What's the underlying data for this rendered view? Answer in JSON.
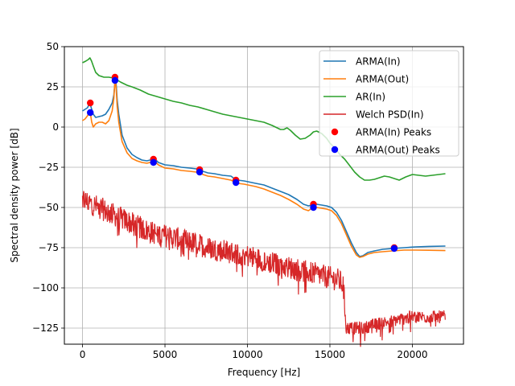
{
  "chart_data": {
    "type": "line",
    "title": "",
    "xlabel": "Frequency [Hz]",
    "ylabel": "Spectral density power [dB]",
    "xlim": [
      -1100,
      23100
    ],
    "ylim": [
      -135,
      50
    ],
    "xticks": [
      0,
      5000,
      10000,
      15000,
      20000
    ],
    "yticks": [
      50,
      25,
      0,
      -25,
      -50,
      -75,
      -100,
      -125
    ],
    "xtick_labels": [
      "0",
      "5000",
      "10000",
      "15000",
      "20000"
    ],
    "ytick_labels": [
      "50",
      "25",
      "0",
      "−25",
      "−50",
      "−75",
      "−100",
      "−125"
    ],
    "grid": true,
    "legend_position": "top-right",
    "series": [
      {
        "name": "ARMA(In)",
        "kind": "line",
        "color": "#1f77b4",
        "x": [
          0,
          150,
          300,
          400,
          460,
          500,
          560,
          650,
          800,
          1000,
          1200,
          1400,
          1600,
          1800,
          1900,
          1950,
          1980,
          2000,
          2050,
          2100,
          2200,
          2400,
          2700,
          3000,
          3300,
          3600,
          3900,
          4100,
          4200,
          4300,
          4400,
          4600,
          5000,
          5500,
          6000,
          6500,
          6900,
          7100,
          7300,
          7600,
          8000,
          8500,
          9000,
          9200,
          9400,
          9800,
          10500,
          11000,
          11500,
          12000,
          12500,
          13000,
          13400,
          13700,
          13900,
          14000,
          14200,
          14500,
          14800,
          15100,
          15400,
          15700,
          16000,
          16300,
          16600,
          16800,
          17000,
          17300,
          17700,
          18200,
          18800,
          19500,
          20200,
          21000,
          22000
        ],
        "y": [
          10,
          11,
          12,
          14,
          15,
          13,
          11,
          8,
          6,
          6.5,
          7,
          8,
          11,
          15,
          20,
          26,
          30,
          31,
          25,
          17,
          8,
          -5,
          -13,
          -17,
          -19,
          -20.5,
          -21,
          -20.5,
          -20,
          -19.5,
          -20,
          -22,
          -23.5,
          -24,
          -25,
          -25.5,
          -26,
          -26,
          -27.5,
          -28.5,
          -29,
          -30,
          -30.5,
          -32,
          -33,
          -33.5,
          -35,
          -36,
          -38,
          -40,
          -42,
          -45,
          -48,
          -49,
          -48.5,
          -48,
          -48,
          -48.5,
          -49,
          -50,
          -53,
          -58,
          -65,
          -72,
          -78,
          -80.5,
          -80,
          -78,
          -77,
          -76,
          -75.5,
          -75,
          -74.5,
          -74.2,
          -74
        ]
      },
      {
        "name": "ARMA(Out)",
        "kind": "line",
        "color": "#ff7f0e",
        "x": [
          0,
          150,
          300,
          400,
          460,
          500,
          560,
          650,
          800,
          1000,
          1200,
          1400,
          1600,
          1800,
          1900,
          1950,
          1980,
          2000,
          2050,
          2100,
          2200,
          2400,
          2700,
          3000,
          3300,
          3600,
          3900,
          4100,
          4200,
          4300,
          4400,
          4600,
          5000,
          5500,
          6000,
          6500,
          6900,
          7100,
          7300,
          7600,
          8000,
          8500,
          9000,
          9200,
          9400,
          9800,
          10500,
          11000,
          11500,
          12000,
          12500,
          13000,
          13400,
          13700,
          13900,
          14000,
          14200,
          14500,
          14800,
          15100,
          15400,
          15700,
          16000,
          16300,
          16600,
          16800,
          17000,
          17300,
          17700,
          18200,
          18800,
          19500,
          20200,
          21000,
          22000
        ],
        "y": [
          4,
          5,
          7,
          9,
          9.5,
          7,
          3,
          0,
          2,
          3,
          3,
          2,
          4,
          10,
          18,
          26,
          30,
          29,
          22,
          13,
          3,
          -9,
          -16,
          -19.5,
          -21,
          -22,
          -22.5,
          -22,
          -21.5,
          -21,
          -21.5,
          -23.5,
          -25.5,
          -26,
          -27,
          -27.5,
          -28,
          -28,
          -29.5,
          -30.5,
          -31,
          -32,
          -33,
          -34,
          -35,
          -35.5,
          -37,
          -38.5,
          -40.5,
          -42.5,
          -45,
          -48,
          -51,
          -52,
          -50.5,
          -49.5,
          -50,
          -50.5,
          -51,
          -52,
          -55,
          -60,
          -67,
          -74,
          -79.5,
          -81,
          -80.5,
          -79,
          -78,
          -77.5,
          -77,
          -76.5,
          -76.5,
          -76.6,
          -76.8
        ]
      },
      {
        "name": "AR(In)",
        "kind": "line",
        "color": "#2ca02c",
        "x": [
          0,
          200,
          350,
          450,
          550,
          650,
          800,
          1000,
          1300,
          1600,
          1850,
          2000,
          2300,
          2700,
          3000,
          3500,
          4000,
          4500,
          5000,
          5500,
          6000,
          6500,
          7000,
          7500,
          8000,
          8500,
          9000,
          9500,
          10000,
          10500,
          11000,
          11500,
          11800,
          12000,
          12200,
          12400,
          12600,
          12900,
          13200,
          13500,
          13800,
          14000,
          14200,
          14500,
          14800,
          15000,
          15300,
          15600,
          15900,
          16200,
          16500,
          16800,
          17100,
          17400,
          17700,
          18000,
          18300,
          18600,
          18900,
          19200,
          19600,
          20000,
          20400,
          20800,
          21200,
          21600,
          22000
        ],
        "y": [
          40,
          41,
          42,
          43,
          41,
          38,
          34,
          32,
          31,
          31,
          30.5,
          30,
          28,
          26,
          25,
          23,
          20.5,
          19,
          17.5,
          16,
          15,
          13.5,
          12.5,
          11,
          9.5,
          8,
          7,
          6,
          5,
          4,
          3,
          1,
          -0.5,
          -1.5,
          -1.5,
          -0.5,
          -2,
          -5,
          -7.5,
          -7,
          -5,
          -3,
          -2.5,
          -4,
          -7,
          -10,
          -13,
          -17,
          -20,
          -24,
          -28,
          -31,
          -33,
          -33,
          -32.5,
          -31.5,
          -30.5,
          -31,
          -32,
          -33,
          -31,
          -29.5,
          -30,
          -30.5,
          -30,
          -29.5,
          -29
        ]
      },
      {
        "name": "Welch PSD(In)",
        "kind": "welch",
        "color": "#d62728",
        "x": [
          0,
          2000,
          4000,
          6000,
          8000,
          10000,
          12000,
          14000,
          15500,
          15800,
          16000,
          17000,
          18000,
          20000,
          22000
        ],
        "y": [
          -45,
          -55,
          -65,
          -70,
          -76,
          -80,
          -86,
          -91,
          -95,
          -98,
          -125,
          -125,
          -122,
          -118,
          -118
        ]
      },
      {
        "name": "ARMA(In) Peaks",
        "kind": "markers",
        "color": "#ff0000",
        "x": [
          470,
          1970,
          4300,
          7100,
          9300,
          14000,
          18900
        ],
        "y": [
          15,
          31,
          -20,
          -26.5,
          -33,
          -48,
          -75
        ]
      },
      {
        "name": "ARMA(Out) Peaks",
        "kind": "markers",
        "color": "#0000ff",
        "x": [
          470,
          1970,
          4300,
          7100,
          9300,
          14000,
          18900
        ],
        "y": [
          9,
          29,
          -22,
          -28,
          -34.5,
          -50,
          -75.5
        ]
      }
    ]
  }
}
